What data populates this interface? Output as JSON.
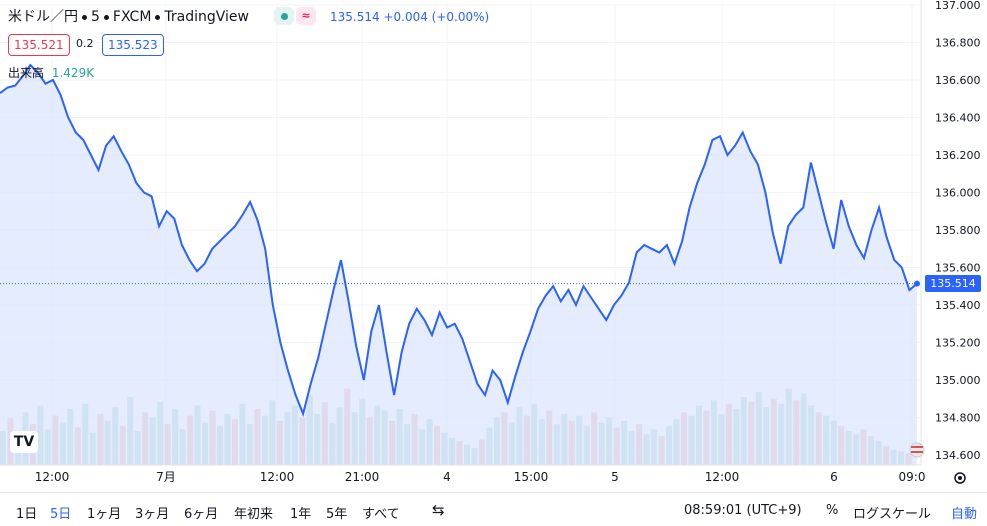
{
  "header": {
    "symbol": "米ドル／円",
    "interval": "5",
    "exchange": "FXCM",
    "provider": "TradingView",
    "last_quote": "135.514 +0.004 (+0.00%)"
  },
  "prices": {
    "sell": "135.521",
    "spread": "0.2",
    "buy": "135.523"
  },
  "volume": {
    "label": "出来高",
    "value": "1.429K"
  },
  "last_price_tag": "135.514",
  "bottom_bar": {
    "ranges": [
      "1日",
      "5日",
      "1ヶ月",
      "3ヶ月",
      "6ヶ月",
      "年初来",
      "1年",
      "5年",
      "すべて"
    ],
    "active_range": "5日",
    "time": "08:59:01 (UTC+9)",
    "percent_label": "%",
    "log_label": "ログスケール",
    "auto_label": "自動"
  },
  "colors": {
    "line": "#2962ff",
    "fill": "#dbe5fd",
    "vol_up": "#9ad1c9",
    "vol_down": "#f0a4a4",
    "grid": "#f0f3fa"
  },
  "chart_data": {
    "type": "area",
    "y_axis_ticks": [
      "137.000",
      "136.800",
      "136.600",
      "136.400",
      "136.200",
      "136.000",
      "135.800",
      "135.600",
      "135.400",
      "135.200",
      "135.000",
      "134.800",
      "134.600"
    ],
    "x_axis_labels": [
      "12:00",
      "7月",
      "12:00",
      "21:00",
      "4",
      "15:00",
      "5",
      "12:00",
      "6",
      "09:0"
    ],
    "ylim": [
      134.6,
      137.0
    ],
    "grid": true,
    "series": [
      {
        "values": [
          136.53,
          136.56,
          136.57,
          136.62,
          136.68,
          136.64,
          136.58,
          136.6,
          136.52,
          136.4,
          136.32,
          136.28,
          136.2,
          136.12,
          136.25,
          136.3,
          136.22,
          136.15,
          136.05,
          136.0,
          135.98,
          135.82,
          135.9,
          135.86,
          135.72,
          135.64,
          135.58,
          135.62,
          135.7,
          135.74,
          135.78,
          135.82,
          135.88,
          135.95,
          135.85,
          135.7,
          135.4,
          135.2,
          135.05,
          134.92,
          134.82,
          134.98,
          135.12,
          135.3,
          135.48,
          135.64,
          135.42,
          135.18,
          135.0,
          135.26,
          135.4,
          135.15,
          134.92,
          135.15,
          135.3,
          135.38,
          135.32,
          135.24,
          135.36,
          135.28,
          135.3,
          135.22,
          135.1,
          134.98,
          134.92,
          135.05,
          135.0,
          134.88,
          135.02,
          135.15,
          135.26,
          135.38,
          135.45,
          135.5,
          135.42,
          135.48,
          135.4,
          135.5,
          135.44,
          135.38,
          135.32,
          135.4,
          135.45,
          135.52,
          135.68,
          135.72,
          135.7,
          135.68,
          135.72,
          135.62,
          135.74,
          135.92,
          136.05,
          136.15,
          136.28,
          136.3,
          136.2,
          136.25,
          136.32,
          136.22,
          136.15,
          136.0,
          135.78,
          135.62,
          135.82,
          135.88,
          135.92,
          136.16,
          136.0,
          135.84,
          135.7,
          135.96,
          135.82,
          135.72,
          135.65,
          135.8,
          135.92,
          135.76,
          135.64,
          135.6,
          135.48,
          135.514
        ]
      }
    ],
    "volume_values": [
      0.4,
      0.55,
      0.35,
      0.62,
      0.48,
      0.7,
      0.42,
      0.58,
      0.5,
      0.66,
      0.44,
      0.72,
      0.38,
      0.6,
      0.52,
      0.68,
      0.46,
      0.8,
      0.4,
      0.62,
      0.56,
      0.74,
      0.48,
      0.66,
      0.42,
      0.58,
      0.7,
      0.5,
      0.64,
      0.46,
      0.6,
      0.54,
      0.72,
      0.48,
      0.66,
      0.58,
      0.76,
      0.52,
      0.62,
      0.7,
      0.56,
      0.82,
      0.6,
      0.74,
      0.5,
      0.68,
      0.9,
      0.62,
      0.78,
      0.56,
      0.7,
      0.64,
      0.52,
      0.66,
      0.48,
      0.6,
      0.42,
      0.54,
      0.46,
      0.38,
      0.32,
      0.28,
      0.24,
      0.2,
      0.3,
      0.44,
      0.56,
      0.62,
      0.5,
      0.68,
      0.58,
      0.72,
      0.54,
      0.64,
      0.48,
      0.6,
      0.52,
      0.58,
      0.46,
      0.62,
      0.5,
      0.56,
      0.44,
      0.52,
      0.4,
      0.48,
      0.36,
      0.42,
      0.34,
      0.46,
      0.54,
      0.62,
      0.58,
      0.7,
      0.64,
      0.76,
      0.6,
      0.72,
      0.66,
      0.8,
      0.74,
      0.86,
      0.68,
      0.78,
      0.72,
      0.9,
      0.76,
      0.84,
      0.7,
      0.62,
      0.58,
      0.52,
      0.46,
      0.4,
      0.36,
      0.42,
      0.34,
      0.28,
      0.22,
      0.18,
      0.16,
      0.14
    ]
  }
}
